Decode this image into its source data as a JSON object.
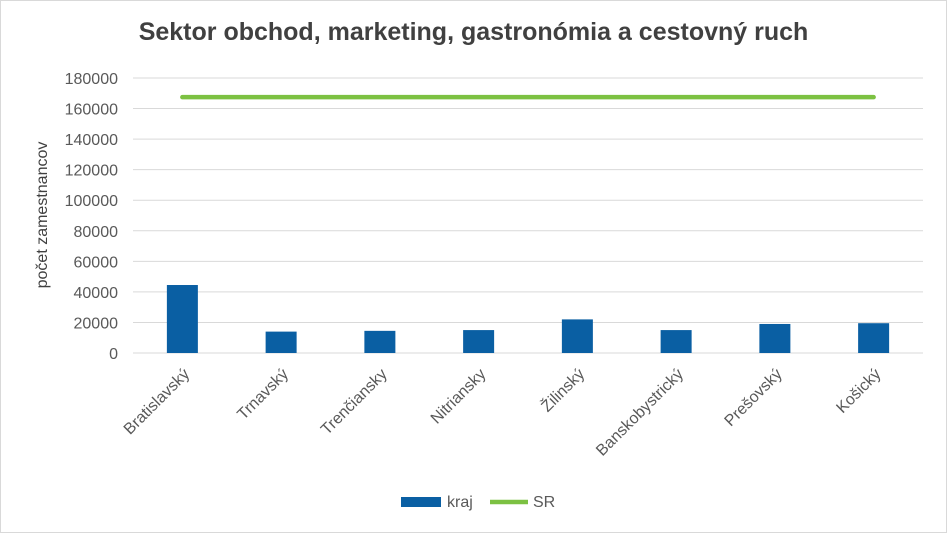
{
  "chart_data": {
    "type": "bar",
    "title": "Sektor obchod, marketing, gastronómia a cestovný ruch",
    "xlabel": "",
    "ylabel": "počet zamestnancov",
    "ylim": [
      0,
      180000
    ],
    "yticks": [
      "0",
      "20000",
      "40000",
      "60000",
      "80000",
      "100000",
      "120000",
      "140000",
      "160000",
      "180000"
    ],
    "categories": [
      "Bratislavský",
      "Trnavský",
      "Trenčiansky",
      "Nitriansky",
      "Žilinský",
      "Banskobystrický",
      "Prešovský",
      "Košický"
    ],
    "series": [
      {
        "name": "kraj",
        "kind": "bar",
        "color": "#0a5fa3",
        "values": [
          44500,
          14000,
          14500,
          15000,
          22000,
          15000,
          19000,
          19500
        ]
      },
      {
        "name": "SR",
        "kind": "line",
        "color": "#7cc142",
        "values": [
          167500,
          167500,
          167500,
          167500,
          167500,
          167500,
          167500,
          167500
        ]
      }
    ],
    "grid": true,
    "legend": "bottom"
  }
}
